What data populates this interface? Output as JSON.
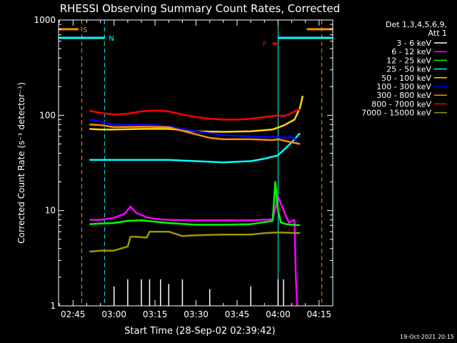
{
  "colors": {
    "background": "#000000",
    "axes": "#ffffff",
    "orange_bar": "#ff8c00",
    "cyan_bar": "#00ffff",
    "flare_marker": "#ff0000"
  },
  "footer": {
    "timestamp": "19-Oct-2021 20:15"
  },
  "chart_data": {
    "type": "line",
    "title": "RHESSI Observing Summary Count Rates, Corrected",
    "xlabel": "Start Time (28-Sep-02 02:39:42)",
    "ylabel": "Corrected Count Rate (s⁻¹ detector⁻¹)",
    "y_scale": "log",
    "ylim": [
      1,
      1000
    ],
    "y_ticks": [
      {
        "value": 1,
        "label": "1"
      },
      {
        "value": 10,
        "label": "10"
      },
      {
        "value": 100,
        "label": "100"
      },
      {
        "value": 1000,
        "label": "1000"
      }
    ],
    "xlim": [
      "02:39:42",
      "04:20:00"
    ],
    "x_ticks": [
      "02:45",
      "03:00",
      "03:15",
      "03:30",
      "03:45",
      "04:00",
      "04:15"
    ],
    "legend": {
      "placement": "right",
      "header": [
        "Det 1,3,4,5,6,9,",
        "Att 1"
      ]
    },
    "attenuator_bars": [
      {
        "label": "S",
        "color": "#ff8c00",
        "y": 800,
        "segments": [
          [
            "02:39:42",
            "02:47:00"
          ],
          [
            "04:10:30",
            "04:20:00"
          ]
        ]
      },
      {
        "label": "N",
        "color": "#00ffff",
        "y": 650,
        "segments": [
          [
            "02:39:42",
            "02:56:30"
          ],
          [
            "04:00:00",
            "04:20:00"
          ]
        ]
      }
    ],
    "vlines": [
      {
        "time": "02:48:10",
        "color": "#ff8c00",
        "style": "dashed"
      },
      {
        "time": "02:56:30",
        "color": "#00ffff",
        "style": "dashed"
      },
      {
        "time": "04:00:00",
        "color": "#00ffff",
        "style": "solid"
      },
      {
        "time": "04:16:00",
        "color": "#ff8c00",
        "style": "dashed"
      }
    ],
    "flare_marker": {
      "label": "F",
      "time": "03:58:00",
      "y": 560,
      "color": "#ff0000"
    },
    "series": [
      {
        "name": "3 - 6 keV",
        "color": "#ffffff",
        "style": "spikes",
        "x": [
          "03:00",
          "03:05",
          "03:10",
          "03:13",
          "03:17",
          "03:20",
          "03:25",
          "03:35",
          "03:50",
          "04:00",
          "04:02"
        ],
        "y": [
          1.6,
          1.9,
          1.9,
          1.9,
          1.9,
          1.7,
          1.9,
          1.5,
          1.6,
          1.9,
          1.9
        ]
      },
      {
        "name": "6 - 12 keV",
        "color": "#ff00ff",
        "x": [
          "02:51",
          "02:55",
          "03:00",
          "03:04",
          "03:06",
          "03:08",
          "03:12",
          "03:15",
          "03:20",
          "03:30",
          "03:40",
          "03:50",
          "03:58",
          "04:00",
          "04:03",
          "04:04",
          "04:06",
          "04:06:30",
          "04:07"
        ],
        "y": [
          8.0,
          8.0,
          8.4,
          9.3,
          11.0,
          9.5,
          8.5,
          8.2,
          8.0,
          7.9,
          7.9,
          7.9,
          8.1,
          14.0,
          8.6,
          7.5,
          8.0,
          2.0,
          1.0
        ]
      },
      {
        "name": "12 - 25 keV",
        "color": "#00ff00",
        "x": [
          "02:51",
          "02:55",
          "03:00",
          "03:05",
          "03:10",
          "03:20",
          "03:30",
          "03:40",
          "03:50",
          "03:58",
          "03:59",
          "04:00",
          "04:01",
          "04:03",
          "04:08"
        ],
        "y": [
          7.2,
          7.3,
          7.4,
          7.8,
          7.9,
          7.4,
          7.1,
          7.1,
          7.2,
          7.8,
          20.0,
          10.0,
          7.5,
          7.2,
          7.0
        ]
      },
      {
        "name": "25 - 50 keV",
        "color": "#00ffff",
        "x": [
          "02:51",
          "02:55",
          "03:00",
          "03:10",
          "03:20",
          "03:30",
          "03:40",
          "03:50",
          "03:55",
          "04:00",
          "04:05",
          "04:08"
        ],
        "y": [
          34,
          34,
          34,
          34,
          34,
          33,
          32,
          33,
          35,
          38,
          52,
          65
        ]
      },
      {
        "name": "50 - 100 keV",
        "color": "#ffd700",
        "x": [
          "02:51",
          "02:55",
          "03:00",
          "03:10",
          "03:20",
          "03:30",
          "03:40",
          "03:50",
          "03:58",
          "04:02",
          "04:06",
          "04:08",
          "04:09"
        ],
        "y": [
          72,
          71,
          71,
          72,
          72,
          68,
          67,
          68,
          71,
          78,
          90,
          120,
          160
        ]
      },
      {
        "name": "100 - 300 keV",
        "color": "#0000ff",
        "x": [
          "02:51",
          "02:55",
          "03:00",
          "03:10",
          "03:15",
          "03:20",
          "03:30",
          "03:40",
          "03:50",
          "04:00",
          "04:03",
          "04:05",
          "04:06",
          "04:07"
        ],
        "y": [
          90,
          86,
          79,
          80,
          79,
          76,
          68,
          62,
          60,
          59,
          58,
          60,
          57,
          52
        ]
      },
      {
        "name": "300 - 800 keV",
        "color": "#ff8c00",
        "x": [
          "02:51",
          "02:55",
          "03:00",
          "03:10",
          "03:20",
          "03:30",
          "03:35",
          "03:40",
          "03:50",
          "03:58",
          "04:00",
          "04:05",
          "04:08"
        ],
        "y": [
          80,
          79,
          75,
          76,
          75,
          63,
          58,
          56,
          56,
          55,
          56,
          52,
          50
        ]
      },
      {
        "name": "800 - 7000 keV",
        "color": "#ff0000",
        "x": [
          "02:51",
          "02:55",
          "03:00",
          "03:05",
          "03:10",
          "03:15",
          "03:20",
          "03:25",
          "03:30",
          "03:35",
          "03:40",
          "03:45",
          "03:50",
          "03:55",
          "03:58",
          "04:00",
          "04:02",
          "04:04",
          "04:06",
          "04:08"
        ],
        "y": [
          112,
          106,
          102,
          104,
          110,
          112,
          110,
          102,
          96,
          92,
          90,
          90,
          92,
          96,
          98,
          100,
          98,
          102,
          110,
          115
        ]
      },
      {
        "name": "7000 - 15000 keV",
        "color": "#999900",
        "x": [
          "02:51",
          "02:55",
          "03:00",
          "03:05",
          "03:06",
          "03:08",
          "03:12",
          "03:13",
          "03:20",
          "03:25",
          "03:30",
          "03:40",
          "03:50",
          "03:55",
          "04:00",
          "04:08"
        ],
        "y": [
          3.7,
          3.8,
          3.8,
          4.2,
          5.3,
          5.3,
          5.2,
          6.0,
          6.0,
          5.4,
          5.5,
          5.6,
          5.6,
          5.8,
          5.9,
          5.8
        ]
      }
    ]
  }
}
